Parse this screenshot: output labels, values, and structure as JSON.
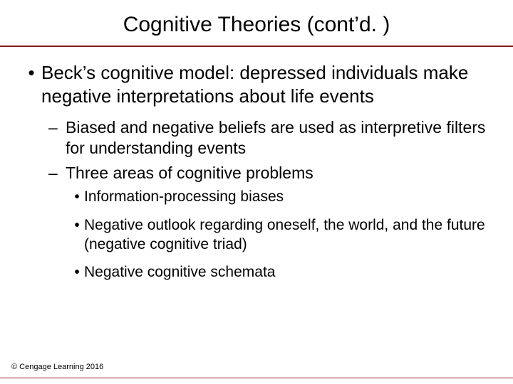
{
  "colors": {
    "rule": "#8b1a1a",
    "background": "#ffffff",
    "text": "#000000"
  },
  "typography": {
    "title_fontsize": 30,
    "l1_fontsize": 26,
    "l2_fontsize": 23,
    "l3_fontsize": 21,
    "copyright_fontsize": 11,
    "font_family": "Arial"
  },
  "title": "Cognitive Theories (cont’d. )",
  "bullets": {
    "l1": {
      "mark": "•",
      "text": "Beck’s cognitive model:  depressed individuals make negative interpretations about life events"
    },
    "l2": [
      {
        "mark": "–",
        "text": "Biased and negative beliefs are used as interpretive filters for understanding events"
      },
      {
        "mark": "–",
        "text": "Three areas of cognitive problems"
      }
    ],
    "l3": [
      {
        "mark": "•",
        "text": "Information-processing biases"
      },
      {
        "mark": "•",
        "text": "Negative outlook regarding oneself, the world, and the future (negative cognitive triad)"
      },
      {
        "mark": "•",
        "text": "Negative cognitive schemata"
      }
    ]
  },
  "copyright": "© Cengage Learning 2016"
}
